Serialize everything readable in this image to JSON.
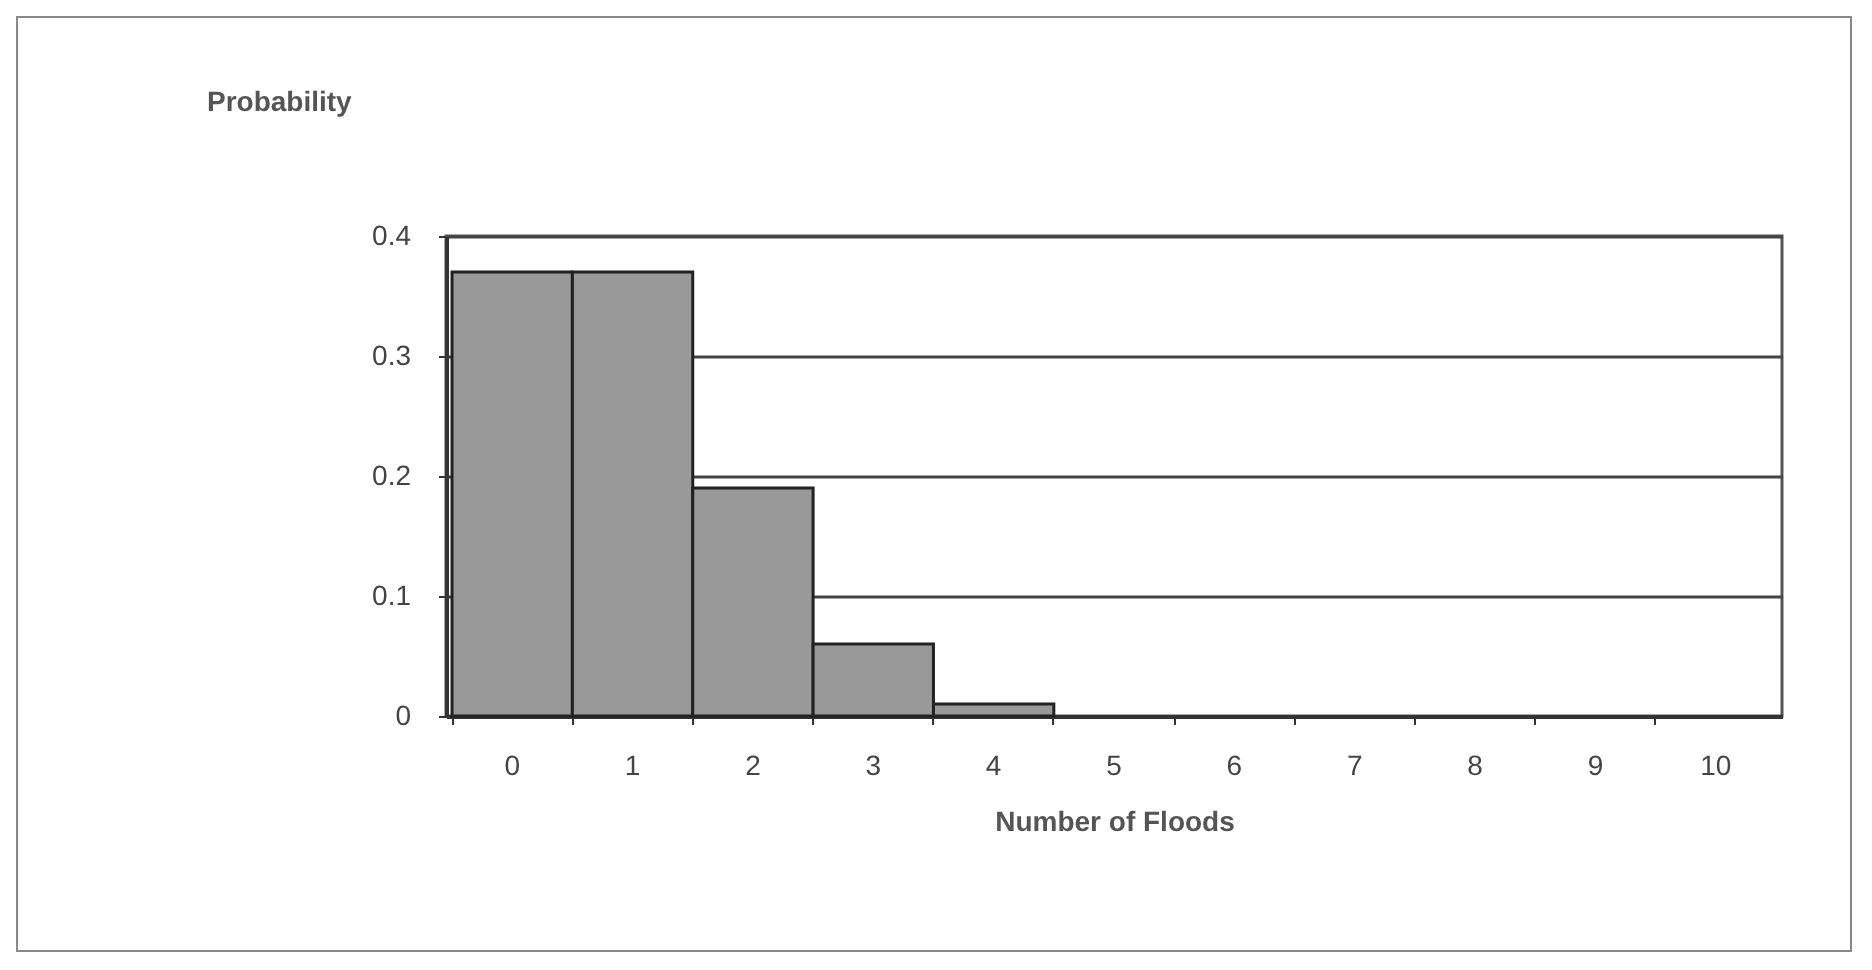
{
  "chart_data": {
    "type": "bar",
    "xlabel": "Number of Floods",
    "ylabel": "Probability",
    "categories": [
      "0",
      "1",
      "2",
      "3",
      "4",
      "5",
      "6",
      "7",
      "8",
      "9",
      "10"
    ],
    "values": [
      0.37,
      0.37,
      0.19,
      0.06,
      0.01,
      0,
      0,
      0,
      0,
      0,
      0
    ],
    "color": "#999999",
    "ylim": [
      0,
      0.4
    ],
    "yticks": [
      0,
      0.1,
      0.2,
      0.3,
      0.4
    ],
    "grid": "y"
  }
}
